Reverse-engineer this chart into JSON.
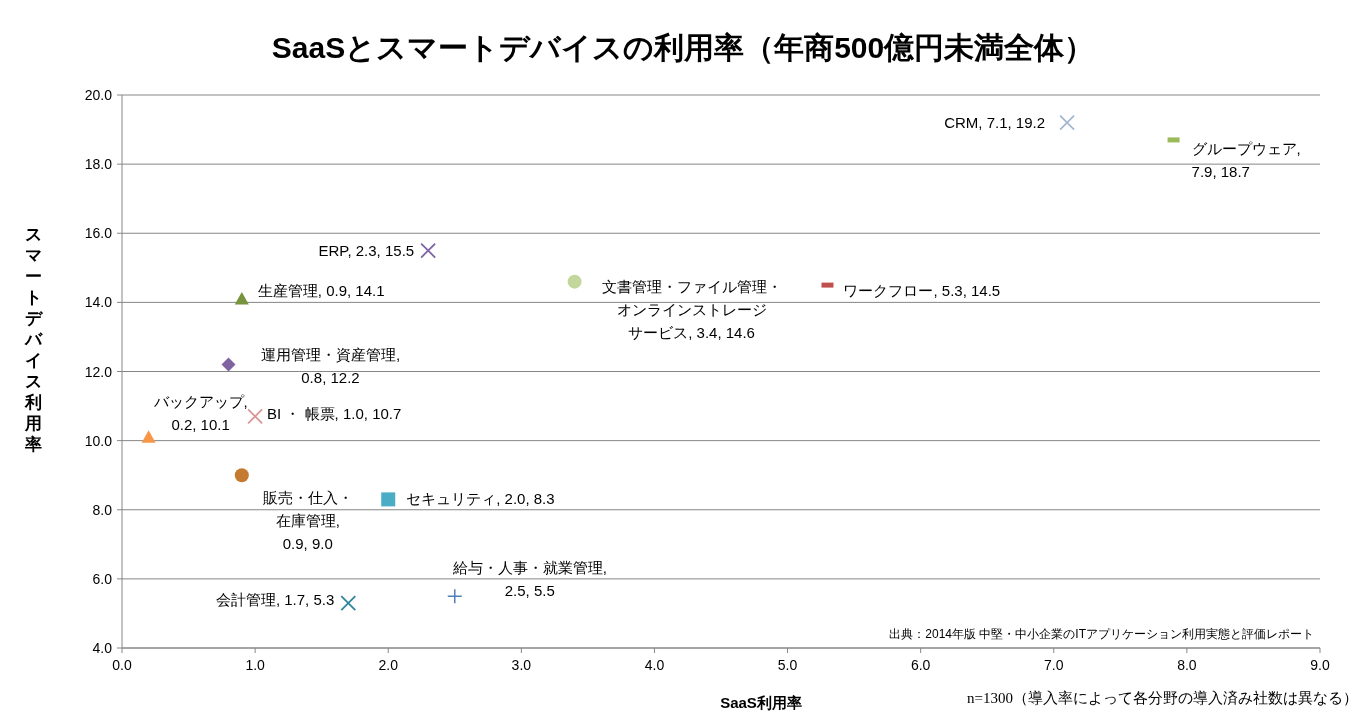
{
  "chart_data": {
    "type": "scatter",
    "title": "SaaSとスマートデバイスの利用率（年商500億円未満全体）",
    "xlabel": "SaaS利用率",
    "ylabel": "スマートデバイス利用率",
    "xlim": [
      0,
      9
    ],
    "xticks": [
      {
        "value": 0,
        "label": "0.0"
      },
      {
        "value": 1,
        "label": "1.0"
      },
      {
        "value": 2,
        "label": "2.0"
      },
      {
        "value": 3,
        "label": "3.0"
      },
      {
        "value": 4,
        "label": "4.0"
      },
      {
        "value": 5,
        "label": "5.0"
      },
      {
        "value": 6,
        "label": "6.0"
      },
      {
        "value": 7,
        "label": "7.0"
      },
      {
        "value": 8,
        "label": "8.0"
      },
      {
        "value": 9,
        "label": "9.0"
      }
    ],
    "ylim": [
      4,
      20
    ],
    "yticks": [
      {
        "value": 4,
        "label": "4.0"
      },
      {
        "value": 6,
        "label": "6.0"
      },
      {
        "value": 8,
        "label": "8.0"
      },
      {
        "value": 10,
        "label": "10.0"
      },
      {
        "value": 12,
        "label": "12.0"
      },
      {
        "value": 14,
        "label": "14.0"
      },
      {
        "value": 16,
        "label": "16.0"
      },
      {
        "value": 18,
        "label": "18.0"
      },
      {
        "value": 20,
        "label": "20.0"
      }
    ],
    "grid": "y",
    "series": [
      {
        "marker": "cross",
        "color": "#a5b8cf",
        "x": [
          7.1
        ],
        "values": [
          19.2
        ],
        "value_labels": [
          "CRM, 7.1, 19.2"
        ]
      },
      {
        "color": "#9bbb59",
        "x": [
          7.9
        ],
        "values": [
          18.7
        ],
        "value_labels": [
          "グループウェア,\n7.9, 18.7"
        ]
      },
      {
        "marker": "cross",
        "color": "#7f63a3",
        "x": [
          2.3
        ],
        "values": [
          15.5
        ],
        "value_labels": [
          "ERP, 2.3, 15.5"
        ]
      },
      {
        "marker": "circle",
        "color": "#c3d69b",
        "x": [
          3.4
        ],
        "values": [
          14.6
        ],
        "value_labels": [
          "文書管理・ファイル管理・オンラインストレージサービス, 3.4, 14.6"
        ]
      },
      {
        "color": "#c0504d",
        "x": [
          5.3
        ],
        "values": [
          14.5
        ],
        "value_labels": [
          "ワークフロー, 5.3, 14.5"
        ]
      },
      {
        "marker": "triangle",
        "color": "#77933c",
        "x": [
          0.9
        ],
        "values": [
          14.1
        ],
        "value_labels": [
          "生産管理, 0.9, 14.1"
        ]
      },
      {
        "marker": "diamond",
        "color": "#8064a2",
        "x": [
          0.8
        ],
        "values": [
          12.2
        ],
        "value_labels": [
          "運用管理・資産管理,\n0.8, 12.2"
        ]
      },
      {
        "marker": "cross",
        "color": "#d99694",
        "x": [
          1.0
        ],
        "values": [
          10.7
        ],
        "value_labels": [
          "BI ・ 帳票, 1.0, 10.7"
        ]
      },
      {
        "marker": "triangle",
        "color": "#f79646",
        "x": [
          0.2
        ],
        "values": [
          10.1
        ],
        "value_labels": [
          "バックアップ,\n0.2, 10.1"
        ]
      },
      {
        "marker": "circle",
        "color": "#c57a31",
        "x": [
          0.9
        ],
        "values": [
          9.0
        ],
        "value_labels": [
          "販売・仕入・在庫管理,\n0.9, 9.0"
        ]
      },
      {
        "marker": "square",
        "color": "#4bacc6",
        "x": [
          2.0
        ],
        "values": [
          8.3
        ],
        "value_labels": [
          "セキュリティ, 2.0, 8.3"
        ]
      },
      {
        "marker": "plus",
        "color": "#4f81bd",
        "x": [
          2.5
        ],
        "values": [
          5.5
        ],
        "value_labels": [
          "給与・人事・就業管理,\n2.5, 5.5"
        ]
      },
      {
        "marker": "cross",
        "color": "#31859c",
        "x": [
          1.7
        ],
        "values": [
          5.3
        ],
        "value_labels": [
          "会計管理, 1.7, 5.3"
        ]
      }
    ],
    "annotations": [
      "出典：2014年版 中堅・中小企業のITアプリケーション利用実態と評価レポート",
      "n=1300（導入率によって各分野の導入済み社数は異なる）"
    ]
  }
}
